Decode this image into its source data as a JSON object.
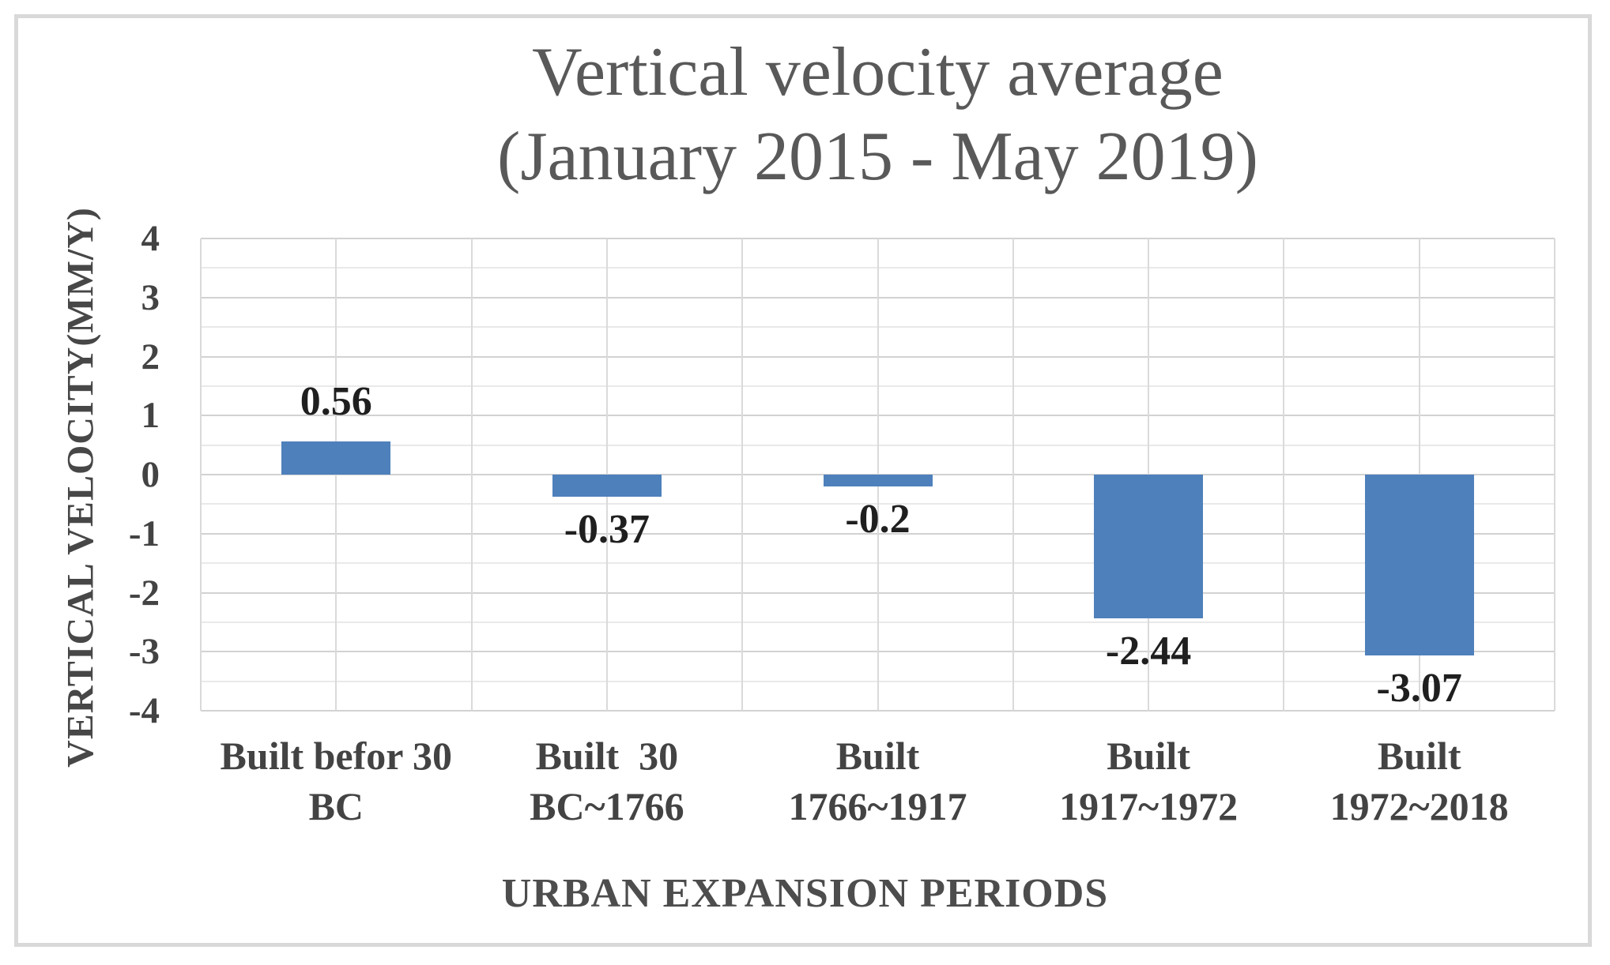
{
  "chart_data": {
    "type": "bar",
    "title": "Vertical velocity average",
    "subtitle": "(January 2015 - May 2019)",
    "xlabel": "URBAN EXPANSION PERIODS",
    "ylabel": "VERTICAL VELOCITY(MM/Y)",
    "categories": [
      [
        "Built befor 30",
        "BC"
      ],
      [
        "Built  30",
        "BC~1766"
      ],
      [
        "Built",
        "1766~1917"
      ],
      [
        "Built",
        "1917~1972"
      ],
      [
        "Built",
        "1972~2018"
      ]
    ],
    "values": [
      0.56,
      -0.37,
      -0.2,
      -2.44,
      -3.07
    ],
    "data_labels": [
      "0.56",
      "-0.37",
      "-0.2",
      "-2.44",
      "-3.07"
    ],
    "y_tick_labels": [
      "4",
      "3",
      "2",
      "1",
      "0",
      "-1",
      "-2",
      "-3",
      "-4"
    ],
    "ylim": [
      -4,
      4
    ],
    "grid": {
      "y_minor_step": 0.5,
      "x_divisions": 10,
      "gridlines_on": true
    },
    "legend": "none",
    "style": {
      "bar_color": "#4E80BC",
      "title_color": "#595959",
      "axis_text_color": "#434343",
      "data_label_color": "#1f1f1f",
      "frame_border_color": "#d9d9d9"
    }
  }
}
